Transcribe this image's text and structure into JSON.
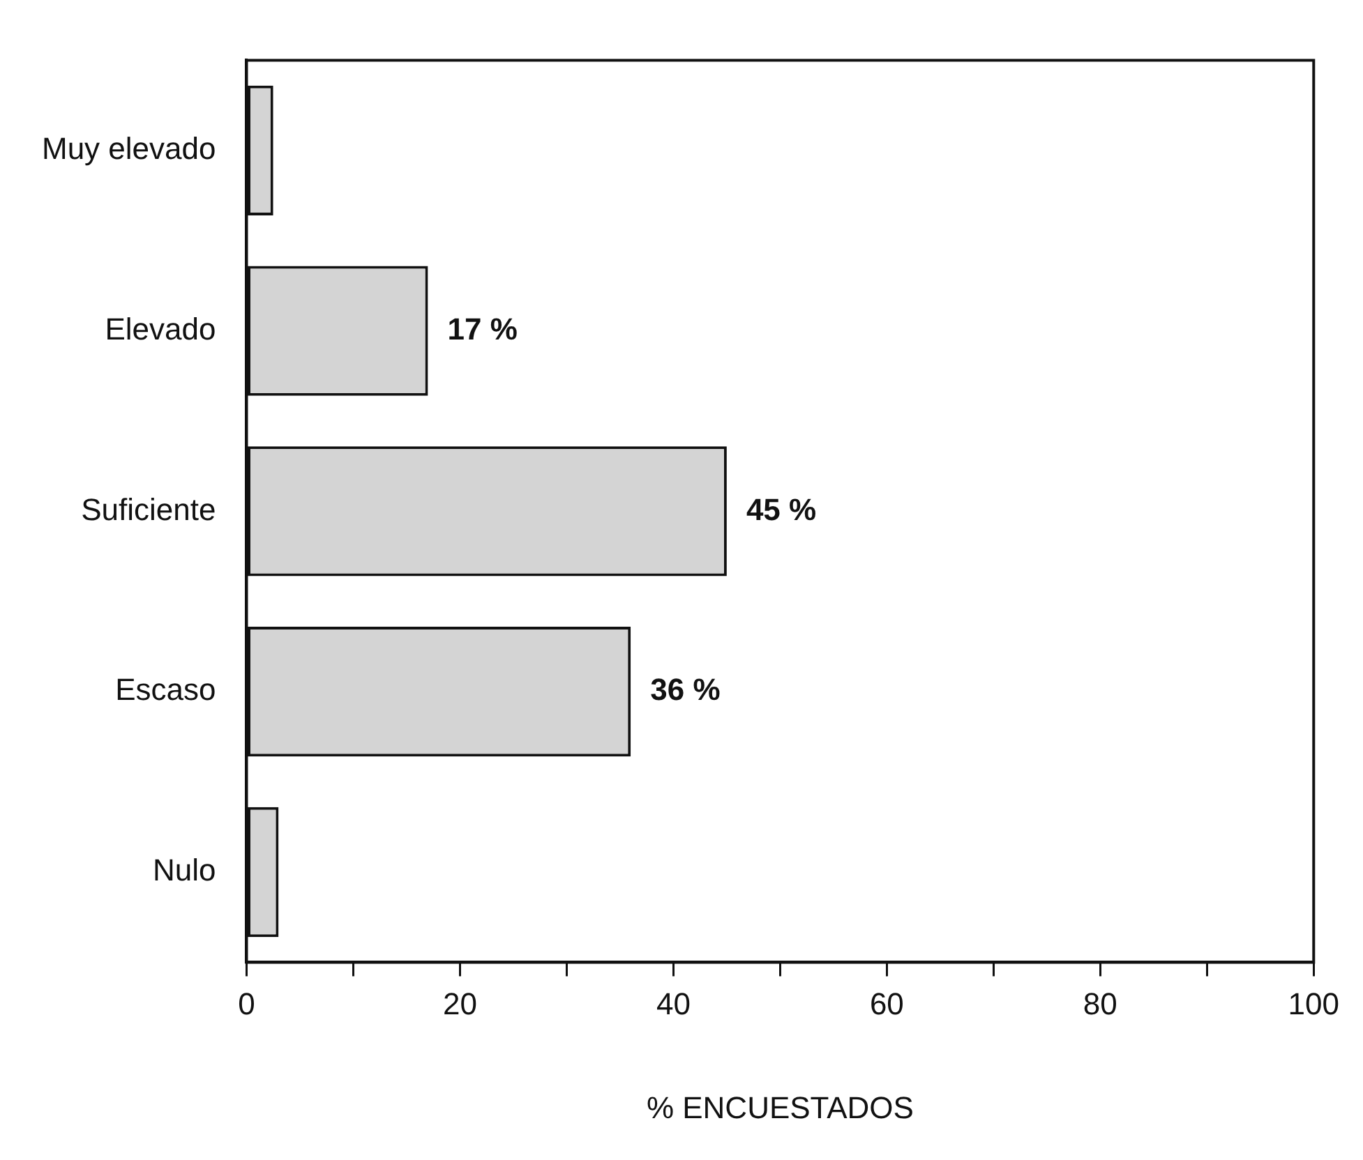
{
  "chart_data": {
    "type": "bar",
    "orientation": "horizontal",
    "xlabel": "% ENCUESTADOS",
    "categories": [
      "Muy elevado",
      "Elevado",
      "Suficiente",
      "Escaso",
      "Nulo"
    ],
    "values": [
      2.5,
      17,
      45,
      36,
      3
    ],
    "value_labels": [
      null,
      "17 %",
      "45 %",
      "36 %",
      null
    ],
    "color": "#d4d4d4",
    "xlim": [
      0,
      100
    ],
    "xticks": [
      0,
      {
        "value": 10,
        "label": null
      },
      20,
      {
        "value": 30,
        "label": null
      },
      40,
      {
        "value": 50,
        "label": null
      },
      60,
      {
        "value": 70,
        "label": null
      },
      80,
      {
        "value": 90,
        "label": null
      },
      100
    ],
    "grid": false,
    "legend": false
  }
}
